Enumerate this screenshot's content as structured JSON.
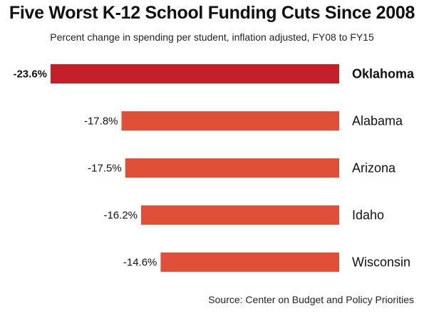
{
  "chart_data": {
    "type": "bar",
    "orientation": "horizontal",
    "title": "Five Worst K-12 School Funding Cuts Since 2008",
    "subtitle": "Percent change in spending per student, inflation adjusted, FY08 to FY15",
    "categories": [
      "Oklahoma",
      "Alabama",
      "Arizona",
      "Idaho",
      "Wisconsin"
    ],
    "values": [
      -23.6,
      -17.8,
      -17.5,
      -16.2,
      -14.6
    ],
    "value_labels": [
      "-23.6%",
      "-17.8%",
      "-17.5%",
      "-16.2%",
      "-14.6%"
    ],
    "highlight_category": "Oklahoma",
    "source": "Source: Center on Budget and Policy Priorities",
    "colors": {
      "highlight": "#c4202a",
      "bar": "#e05038"
    }
  }
}
